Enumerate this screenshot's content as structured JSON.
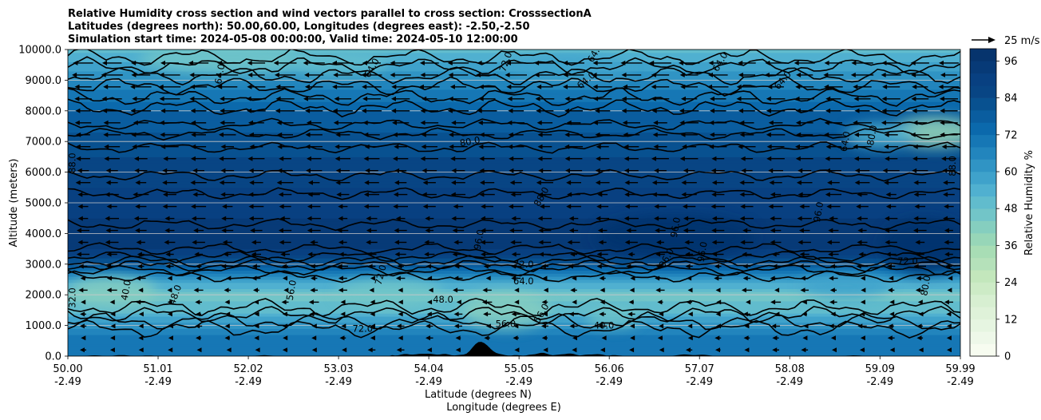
{
  "chart_data": {
    "type": "heatmap",
    "title_lines": [
      "Relative Humidity cross section and wind vectors parallel to cross section: CrosssectionA",
      "Latitudes (degrees north): 50.00,60.00, Longitudes (degrees east): -2.50,-2.50",
      "Simulation start time: 2024-05-08 00:00:00, Valid time: 2024-05-10 12:00:00"
    ],
    "xlabel": "Latitude (degrees N)",
    "xlabel2": "Longitude (degrees E)",
    "ylabel": "Altitude (meters)",
    "x_range": [
      50.0,
      59.99
    ],
    "y_range": [
      0,
      10000
    ],
    "x_ticks": [
      {
        "lat": "50.00",
        "lon": "-2.49"
      },
      {
        "lat": "51.01",
        "lon": "-2.49"
      },
      {
        "lat": "52.02",
        "lon": "-2.49"
      },
      {
        "lat": "53.03",
        "lon": "-2.49"
      },
      {
        "lat": "54.04",
        "lon": "-2.49"
      },
      {
        "lat": "55.05",
        "lon": "-2.49"
      },
      {
        "lat": "56.06",
        "lon": "-2.49"
      },
      {
        "lat": "57.07",
        "lon": "-2.49"
      },
      {
        "lat": "58.08",
        "lon": "-2.49"
      },
      {
        "lat": "59.09",
        "lon": "-2.49"
      },
      {
        "lat": "59.99",
        "lon": "-2.49"
      }
    ],
    "y_ticks": [
      "0.0",
      "1000.0",
      "2000.0",
      "3000.0",
      "4000.0",
      "5000.0",
      "6000.0",
      "7000.0",
      "8000.0",
      "9000.0",
      "10000.0"
    ],
    "colorbar": {
      "label": "Relative Humidity %",
      "ticks": [
        "0",
        "12",
        "24",
        "36",
        "48",
        "60",
        "72",
        "84",
        "96"
      ],
      "levels": [
        0,
        4,
        8,
        12,
        16,
        20,
        24,
        28,
        32,
        36,
        40,
        44,
        48,
        52,
        56,
        60,
        64,
        68,
        72,
        76,
        80,
        84,
        88,
        92,
        96,
        100
      ],
      "colors": [
        "#f7fcf0",
        "#eef8e9",
        "#e6f5e1",
        "#dff2d9",
        "#d7efd1",
        "#cdebc6",
        "#c3e7bc",
        "#b5e1ba",
        "#a8ddb5",
        "#97d6b8",
        "#85cebf",
        "#72c5c8",
        "#61bccd",
        "#50b0d0",
        "#3fa2cb",
        "#3094c4",
        "#2285bd",
        "#1677b5",
        "#0b69ac",
        "#0a5d9f",
        "#085190",
        "#084584",
        "#084081",
        "#073a77",
        "#06346d"
      ]
    },
    "wind_reference": "25 m/s",
    "contour_labels": [
      "32.0",
      "40.0",
      "48.0",
      "56.0",
      "64.0",
      "72.0",
      "80.0",
      "88.0",
      "96.0"
    ],
    "rh_profile": [
      {
        "altitude": 0,
        "rh": 70
      },
      {
        "altitude": 500,
        "rh": 72
      },
      {
        "altitude": 1000,
        "rh": 62
      },
      {
        "altitude": 1500,
        "rh": 50
      },
      {
        "altitude": 2000,
        "rh": 46
      },
      {
        "altitude": 2500,
        "rh": 58
      },
      {
        "altitude": 3000,
        "rh": 80
      },
      {
        "altitude": 3500,
        "rh": 92
      },
      {
        "altitude": 4000,
        "rh": 94
      },
      {
        "altitude": 5000,
        "rh": 90
      },
      {
        "altitude": 6000,
        "rh": 86
      },
      {
        "altitude": 7000,
        "rh": 82
      },
      {
        "altitude": 8000,
        "rh": 76
      },
      {
        "altitude": 9000,
        "rh": 64
      },
      {
        "altitude": 10000,
        "rh": 50
      }
    ]
  }
}
